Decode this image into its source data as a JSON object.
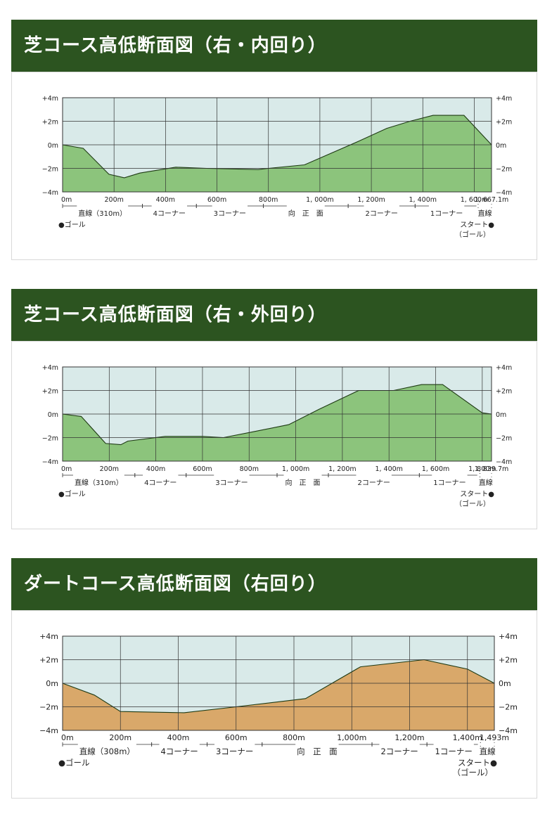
{
  "colors": {
    "header_bg": "#2c5420",
    "plot_bg": "#d9eae9",
    "grid": "#333333",
    "turf_fill": "#8cc47c",
    "dirt_fill": "#d9a86a"
  },
  "sections": [
    {
      "title": "芝コース高低断面図（右・内回り）",
      "goal_label": "●ゴール",
      "start_label": "スタート●",
      "start_sub": "（ゴール）",
      "chart_data": {
        "type": "area",
        "ylim": [
          -4,
          4
        ],
        "xlim": [
          0,
          1667.1
        ],
        "y_ticks": [
          "+4m",
          "+2m",
          "0m",
          "−2m",
          "−4m"
        ],
        "x_ticks": [
          {
            "x": 0,
            "label": "0m"
          },
          {
            "x": 200,
            "label": "200m"
          },
          {
            "x": 400,
            "label": "400m"
          },
          {
            "x": 600,
            "label": "600m"
          },
          {
            "x": 800,
            "label": "800m"
          },
          {
            "x": 1000,
            "label": "1, 000m"
          },
          {
            "x": 1200,
            "label": "1, 200m"
          },
          {
            "x": 1400,
            "label": "1, 400m"
          },
          {
            "x": 1600,
            "label": "1, 600m"
          },
          {
            "x": 1667.1,
            "label": "1, 667.1m"
          }
        ],
        "segments": [
          {
            "from": 0,
            "to": 310,
            "label": "直線（310m）"
          },
          {
            "from": 310,
            "to": 520,
            "label": "4コーナー"
          },
          {
            "from": 520,
            "to": 780,
            "label": "3コーナー"
          },
          {
            "from": 780,
            "to": 1110,
            "label": "向　正　面"
          },
          {
            "from": 1110,
            "to": 1370,
            "label": "2コーナー"
          },
          {
            "from": 1370,
            "to": 1615,
            "label": "1コーナー"
          },
          {
            "from": 1615,
            "to": 1667.1,
            "label": "直線"
          }
        ],
        "profile": [
          [
            0,
            0
          ],
          [
            80,
            -0.3
          ],
          [
            180,
            -2.5
          ],
          [
            240,
            -2.8
          ],
          [
            300,
            -2.4
          ],
          [
            440,
            -1.9
          ],
          [
            560,
            -2.0
          ],
          [
            760,
            -2.1
          ],
          [
            800,
            -2.0
          ],
          [
            940,
            -1.7
          ],
          [
            1150,
            0.3
          ],
          [
            1260,
            1.4
          ],
          [
            1350,
            2.0
          ],
          [
            1440,
            2.5
          ],
          [
            1560,
            2.5
          ],
          [
            1667.1,
            0
          ]
        ]
      }
    },
    {
      "title": "芝コース高低断面図（右・外回り）",
      "goal_label": "●ゴール",
      "start_label": "スタート●",
      "start_sub": "（ゴール）",
      "chart_data": {
        "type": "area",
        "ylim": [
          -4,
          4
        ],
        "xlim": [
          0,
          1839.7
        ],
        "y_ticks": [
          "+4m",
          "+2m",
          "0m",
          "−2m",
          "−4m"
        ],
        "x_ticks": [
          {
            "x": 0,
            "label": "0m"
          },
          {
            "x": 200,
            "label": "200m"
          },
          {
            "x": 400,
            "label": "400m"
          },
          {
            "x": 600,
            "label": "600m"
          },
          {
            "x": 800,
            "label": "800m"
          },
          {
            "x": 1000,
            "label": "1, 000m"
          },
          {
            "x": 1200,
            "label": "1, 200m"
          },
          {
            "x": 1400,
            "label": "1, 400m"
          },
          {
            "x": 1600,
            "label": "1, 600m"
          },
          {
            "x": 1800,
            "label": "1, 800m"
          },
          {
            "x": 1839.7,
            "label": "1, 839.7m"
          }
        ],
        "segments": [
          {
            "from": 0,
            "to": 310,
            "label": "直線（310m）"
          },
          {
            "from": 310,
            "to": 530,
            "label": "4コーナー"
          },
          {
            "from": 530,
            "to": 920,
            "label": "3コーナー"
          },
          {
            "from": 920,
            "to": 1140,
            "label": "向　正　面"
          },
          {
            "from": 1140,
            "to": 1530,
            "label": "2コーナー"
          },
          {
            "from": 1530,
            "to": 1790,
            "label": "1コーナー"
          },
          {
            "from": 1790,
            "to": 1839.7,
            "label": "直線"
          }
        ],
        "profile": [
          [
            0,
            0
          ],
          [
            80,
            -0.2
          ],
          [
            185,
            -2.5
          ],
          [
            250,
            -2.6
          ],
          [
            280,
            -2.3
          ],
          [
            440,
            -1.9
          ],
          [
            600,
            -1.9
          ],
          [
            690,
            -2.0
          ],
          [
            820,
            -1.5
          ],
          [
            970,
            -0.9
          ],
          [
            1100,
            0.4
          ],
          [
            1270,
            2.0
          ],
          [
            1420,
            2.0
          ],
          [
            1540,
            2.5
          ],
          [
            1630,
            2.5
          ],
          [
            1800,
            0.1
          ],
          [
            1839.7,
            0
          ]
        ]
      }
    },
    {
      "title": "ダートコース高低断面図（右回り）",
      "goal_label": "●ゴール",
      "start_label": "スタート●",
      "start_sub": "（ゴール）",
      "chart_data": {
        "type": "area",
        "ylim": [
          -4,
          4
        ],
        "xlim": [
          0,
          1493
        ],
        "y_ticks": [
          "+4m",
          "+2m",
          "0m",
          "−2m",
          "−4m"
        ],
        "x_ticks": [
          {
            "x": 0,
            "label": "0m"
          },
          {
            "x": 200,
            "label": "200m"
          },
          {
            "x": 400,
            "label": "400m"
          },
          {
            "x": 600,
            "label": "600m"
          },
          {
            "x": 800,
            "label": "800m"
          },
          {
            "x": 1000,
            "label": "1,000m"
          },
          {
            "x": 1200,
            "label": "1,200m"
          },
          {
            "x": 1400,
            "label": "1,400m"
          },
          {
            "x": 1493,
            "label": "1,493m"
          }
        ],
        "segments": [
          {
            "from": 0,
            "to": 308,
            "label": "直線（308m）"
          },
          {
            "from": 308,
            "to": 500,
            "label": "4コーナー"
          },
          {
            "from": 500,
            "to": 690,
            "label": "3コーナー"
          },
          {
            "from": 690,
            "to": 1070,
            "label": "向　正　面"
          },
          {
            "from": 1070,
            "to": 1260,
            "label": "2コーナー"
          },
          {
            "from": 1260,
            "to": 1445,
            "label": "1コーナー"
          },
          {
            "from": 1445,
            "to": 1493,
            "label": "直線"
          }
        ],
        "profile": [
          [
            0,
            0
          ],
          [
            110,
            -1.0
          ],
          [
            200,
            -2.4
          ],
          [
            420,
            -2.5
          ],
          [
            600,
            -2.0
          ],
          [
            840,
            -1.3
          ],
          [
            1030,
            1.4
          ],
          [
            1250,
            2.0
          ],
          [
            1400,
            1.2
          ],
          [
            1493,
            0
          ]
        ]
      }
    }
  ]
}
